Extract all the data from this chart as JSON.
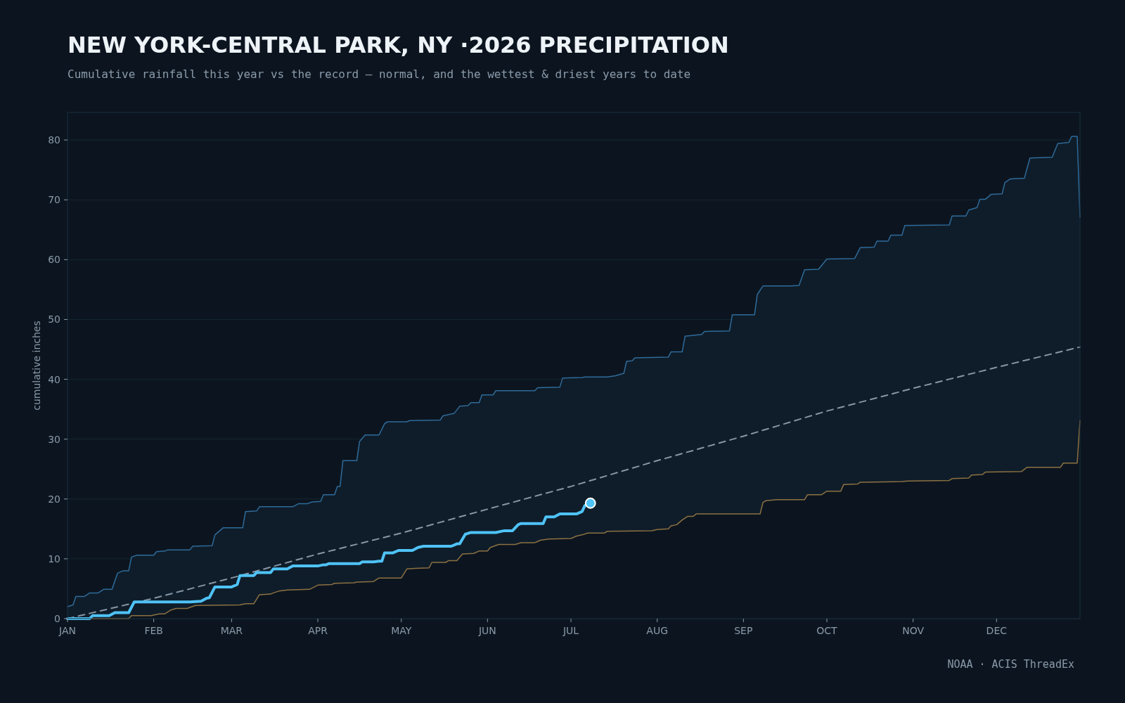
{
  "chart_data": {
    "type": "line",
    "title": "NEW YORK-CENTRAL PARK, NY ·2026 PRECIPITATION",
    "subtitle": "Cumulative rainfall this year vs the record — normal, and the wettest & driest years to date",
    "ylabel": "cumulative inches",
    "annotations": [
      "NOAA · ACIS ThreadEx"
    ],
    "xlim": [
      "--01-01",
      "--12-31"
    ],
    "xticks": [
      {
        "value": "--01-01",
        "label": "JAN"
      },
      {
        "value": "--02-01",
        "label": "FEB"
      },
      {
        "value": "--03-01",
        "label": "MAR"
      },
      {
        "value": "--04-01",
        "label": "APR"
      },
      {
        "value": "--05-01",
        "label": "MAY"
      },
      {
        "value": "--06-01",
        "label": "JUN"
      },
      {
        "value": "--07-01",
        "label": "JUL"
      },
      {
        "value": "--08-01",
        "label": "AUG"
      },
      {
        "value": "--09-01",
        "label": "SEP"
      },
      {
        "value": "--10-01",
        "label": "OCT"
      },
      {
        "value": "--11-01",
        "label": "NOV"
      },
      {
        "value": "--12-01",
        "label": "DEC"
      }
    ],
    "ylim": [
      0,
      84.6
    ],
    "yticks": [
      0,
      10,
      20,
      30,
      40,
      50,
      60,
      70,
      80
    ],
    "grid": "y",
    "series": [
      {
        "type": "area",
        "color": "#2f6b9a",
        "x": [
          "--01-01",
          "--01-03",
          "--01-04",
          "--01-07",
          "--01-09",
          "--01-12",
          "--01-14",
          "--01-17",
          "--01-19",
          "--01-21",
          "--01-23",
          "--01-24",
          "--01-26",
          "--02-01",
          "--02-02",
          "--02-05",
          "--02-06",
          "--02-14",
          "--02-15",
          "--02-22",
          "--02-23",
          "--02-26",
          "--03-05",
          "--03-06",
          "--03-10",
          "--03-11",
          "--03-23",
          "--03-25",
          "--03-28",
          "--03-30",
          "--04-02",
          "--04-03",
          "--04-07",
          "--04-08",
          "--04-09",
          "--04-10",
          "--04-15",
          "--04-16",
          "--04-18",
          "--04-23",
          "--04-25",
          "--04-26",
          "--05-03",
          "--05-04",
          "--05-15",
          "--05-16",
          "--05-20",
          "--05-22",
          "--05-25",
          "--05-26",
          "--05-29",
          "--05-30",
          "--06-03",
          "--06-04",
          "--06-18",
          "--06-19",
          "--06-27",
          "--06-28",
          "--07-05",
          "--07-06",
          "--07-14",
          "--07-17",
          "--07-20",
          "--07-21",
          "--07-23",
          "--07-24",
          "--08-05",
          "--08-06",
          "--08-10",
          "--08-11",
          "--08-17",
          "--08-18",
          "--08-27",
          "--08-28",
          "--09-05",
          "--09-06",
          "--09-08",
          "--09-18",
          "--09-21",
          "--09-23",
          "--09-28",
          "--10-01",
          "--10-11",
          "--10-13",
          "--10-18",
          "--10-19",
          "--10-23",
          "--10-24",
          "--10-28",
          "--10-29",
          "--11-14",
          "--11-15",
          "--11-20",
          "--11-21",
          "--11-24",
          "--11-25",
          "--11-27",
          "--11-29",
          "--12-03",
          "--12-04",
          "--12-06",
          "--12-11",
          "--12-13",
          "--12-21",
          "--12-23",
          "--12-27",
          "--12-28",
          "--12-30",
          "--12-31"
        ],
        "values": [
          2.0,
          2.3,
          3.7,
          3.7,
          4.3,
          4.3,
          4.9,
          4.9,
          7.6,
          8.0,
          8.0,
          10.3,
          10.6,
          10.6,
          11.2,
          11.3,
          11.5,
          11.5,
          12.1,
          12.2,
          14.0,
          15.2,
          15.2,
          17.9,
          18.0,
          18.7,
          18.7,
          19.2,
          19.2,
          19.5,
          19.6,
          20.7,
          20.7,
          22.1,
          22.1,
          26.4,
          26.4,
          29.6,
          30.7,
          30.7,
          32.6,
          32.9,
          32.9,
          33.1,
          33.2,
          33.9,
          34.3,
          35.5,
          35.6,
          36.1,
          36.1,
          37.4,
          37.4,
          38.1,
          38.1,
          38.6,
          38.7,
          40.2,
          40.3,
          40.4,
          40.4,
          40.6,
          41.0,
          43.0,
          43.1,
          43.6,
          43.7,
          44.6,
          44.6,
          47.2,
          47.5,
          48.0,
          48.1,
          50.8,
          50.8,
          54.2,
          55.6,
          55.6,
          55.7,
          58.3,
          58.4,
          60.1,
          60.2,
          62.0,
          62.1,
          63.1,
          63.1,
          64.1,
          64.1,
          65.7,
          65.8,
          67.3,
          67.3,
          68.3,
          68.7,
          70.1,
          70.1,
          70.9,
          71.0,
          72.9,
          73.5,
          73.6,
          77.0,
          77.1,
          79.4,
          79.6,
          80.6,
          80.6,
          67.1
        ]
      },
      {
        "type": "area",
        "color": "#8c7142",
        "x": [
          "--01-01",
          "--01-23",
          "--01-24",
          "--01-31",
          "--02-03",
          "--02-05",
          "--02-07",
          "--02-09",
          "--02-13",
          "--02-16",
          "--03-04",
          "--03-06",
          "--03-09",
          "--03-11",
          "--03-15",
          "--03-16",
          "--03-18",
          "--03-21",
          "--03-29",
          "--04-01",
          "--04-06",
          "--04-07",
          "--04-14",
          "--04-15",
          "--04-21",
          "--04-23",
          "--05-01",
          "--05-03",
          "--05-06",
          "--05-11",
          "--05-12",
          "--05-17",
          "--05-18",
          "--05-21",
          "--05-23",
          "--05-27",
          "--05-29",
          "--06-01",
          "--06-02",
          "--06-05",
          "--06-11",
          "--06-13",
          "--06-18",
          "--06-20",
          "--06-23",
          "--07-01",
          "--07-03",
          "--07-05",
          "--07-07",
          "--07-13",
          "--07-14",
          "--07-30",
          "--08-01",
          "--08-05",
          "--08-06",
          "--08-08",
          "--08-10",
          "--08-12",
          "--08-14",
          "--08-15",
          "--09-07",
          "--09-08",
          "--09-09",
          "--09-13",
          "--09-23",
          "--09-24",
          "--09-29",
          "--10-01",
          "--10-06",
          "--10-07",
          "--10-12",
          "--10-13",
          "--10-28",
          "--10-30",
          "--11-14",
          "--11-15",
          "--11-21",
          "--11-22",
          "--11-26",
          "--11-27",
          "--12-10",
          "--12-12",
          "--12-24",
          "--12-25",
          "--12-30",
          "--12-31"
        ],
        "values": [
          0,
          0,
          0.5,
          0.5,
          0.8,
          0.8,
          1.4,
          1.7,
          1.7,
          2.2,
          2.3,
          2.5,
          2.5,
          4.0,
          4.1,
          4.3,
          4.6,
          4.8,
          4.9,
          5.6,
          5.7,
          5.9,
          6.0,
          6.1,
          6.2,
          6.8,
          6.8,
          8.3,
          8.4,
          8.5,
          9.4,
          9.4,
          9.7,
          9.7,
          10.8,
          10.9,
          11.3,
          11.3,
          11.9,
          12.4,
          12.4,
          12.7,
          12.7,
          13.1,
          13.3,
          13.4,
          13.8,
          14.0,
          14.3,
          14.3,
          14.6,
          14.7,
          14.9,
          15.0,
          15.5,
          15.7,
          16.5,
          17.1,
          17.1,
          17.5,
          17.5,
          19.4,
          19.7,
          19.9,
          19.9,
          20.7,
          20.7,
          21.3,
          21.3,
          22.4,
          22.5,
          22.8,
          22.9,
          23.0,
          23.1,
          23.4,
          23.5,
          24.0,
          24.1,
          24.5,
          24.6,
          25.3,
          25.3,
          26.0,
          26.0,
          33.1
        ]
      },
      {
        "color": "#8796a5",
        "line_style": "dashed",
        "x": [
          "--01-01",
          "--02-01",
          "--03-01",
          "--04-01",
          "--05-01",
          "--06-01",
          "--07-01",
          "--08-01",
          "--09-01",
          "--10-01",
          "--11-01",
          "--12-01",
          "--12-31"
        ],
        "values": [
          0,
          3.4,
          6.8,
          10.8,
          14.3,
          18.3,
          22.1,
          26.4,
          30.5,
          34.7,
          38.5,
          42.0,
          45.4
        ]
      },
      {
        "color": "#4fc3f7",
        "x": [
          "--01-01",
          "--01-09",
          "--01-10",
          "--01-16",
          "--01-18",
          "--01-23",
          "--01-25",
          "--02-14",
          "--02-18",
          "--02-20",
          "--02-21",
          "--02-23",
          "--03-01",
          "--03-03",
          "--03-04",
          "--03-09",
          "--03-10",
          "--03-15",
          "--03-16",
          "--03-21",
          "--03-23",
          "--04-01",
          "--04-03",
          "--04-04",
          "--04-05",
          "--04-16",
          "--04-17",
          "--04-21",
          "--04-23",
          "--04-24",
          "--04-25",
          "--04-28",
          "--04-30",
          "--05-05",
          "--05-07",
          "--05-09",
          "--05-19",
          "--05-21",
          "--05-22",
          "--05-24",
          "--05-26",
          "--06-04",
          "--06-07",
          "--06-10",
          "--06-12",
          "--06-13",
          "--06-21",
          "--06-22",
          "--06-25",
          "--06-27",
          "--07-03",
          "--07-05",
          "--07-06",
          "--07-08"
        ],
        "values": [
          0,
          0,
          0.5,
          0.5,
          1.0,
          1.0,
          2.8,
          2.8,
          2.9,
          3.4,
          3.5,
          5.3,
          5.3,
          5.7,
          7.2,
          7.2,
          7.7,
          7.7,
          8.3,
          8.3,
          8.8,
          8.8,
          9.0,
          9.0,
          9.2,
          9.2,
          9.5,
          9.5,
          9.6,
          9.6,
          11.0,
          11.0,
          11.4,
          11.4,
          11.9,
          12.1,
          12.1,
          12.5,
          12.5,
          14.1,
          14.4,
          14.4,
          14.7,
          14.7,
          15.7,
          15.9,
          15.9,
          17.0,
          17.0,
          17.5,
          17.5,
          17.9,
          18.9,
          19.3
        ]
      },
      {
        "type": "scatter",
        "color": "#4fc3f7",
        "marker": "circle",
        "x": [
          "--07-08"
        ],
        "values": [
          19.3
        ]
      }
    ]
  }
}
